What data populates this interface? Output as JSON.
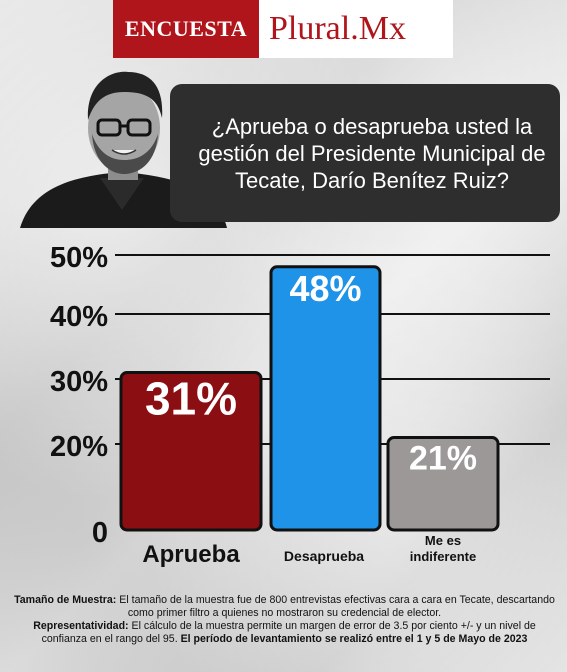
{
  "brand": {
    "label": "ENCUESTA",
    "name": "Plural.Mx",
    "color": "#b0151c"
  },
  "question": "¿Aprueba o desaprueba usted la gestión del Presidente Municipal de Tecate, Darío Benítez Ruiz?",
  "chart_data": {
    "type": "bar",
    "categories": [
      "Aprueba",
      "Desaprueba",
      "Me es indiferente"
    ],
    "values": [
      31,
      48,
      21
    ],
    "value_labels": [
      "31%",
      "48%",
      "21%"
    ],
    "colors": [
      "#8b0e12",
      "#1e93e8",
      "#9c9898"
    ],
    "ylim": [
      0,
      50
    ],
    "yticks": [
      0,
      20,
      30,
      40,
      50
    ],
    "ytick_labels": [
      "0",
      "20%",
      "30%",
      "40%",
      "50%"
    ],
    "grid": true
  },
  "footnote": {
    "sample_label": "Tamaño de Muestra:",
    "sample_text": "El tamaño de la muestra fue de 800 entrevistas efectivas cara a cara en Tecate, descartando como primer filtro a quienes no mostraron su credencial de elector.",
    "repr_label": "Representatividad:",
    "repr_text": "El cálculo de la muestra permite un margen de error de 3.5 por ciento +/- y un nivel de confianza en el rango del 95.",
    "period_text": "El período de levantamiento se realizó entre el 1 y 5 de Mayo de 2023"
  }
}
